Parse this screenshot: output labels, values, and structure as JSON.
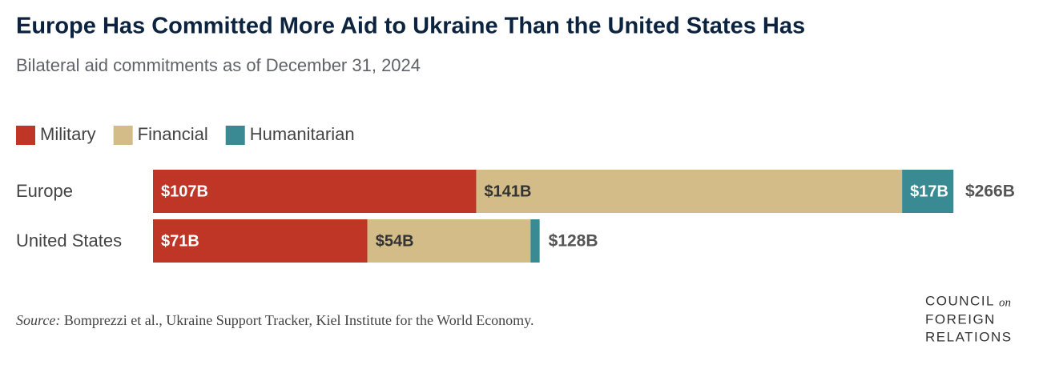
{
  "chart_data": {
    "type": "stacked-bar-horizontal",
    "title": "Europe Has Committed More Aid to Ukraine Than the United States Has",
    "subtitle": "Bilateral aid commitments as of December 31, 2024",
    "categories": [
      "Europe",
      "United States"
    ],
    "series": [
      {
        "name": "Military",
        "color": "#bf3626",
        "values": [
          107,
          71
        ],
        "value_labels": [
          "$107B",
          "$71B"
        ]
      },
      {
        "name": "Financial",
        "color": "#d4bc88",
        "values": [
          141,
          54
        ],
        "value_labels": [
          "$141B",
          "$54B"
        ]
      },
      {
        "name": "Humanitarian",
        "color": "#3a8a94",
        "values": [
          17,
          3
        ],
        "value_labels": [
          "$17B",
          null
        ]
      }
    ],
    "totals": {
      "values": [
        266,
        128
      ],
      "value_labels": [
        "$266B",
        "$128B"
      ]
    },
    "xlim": [
      0,
      266
    ],
    "legend": "top-left"
  },
  "source": {
    "label": "Source:",
    "text": "Bomprezzi et al., Ukraine Support Tracker, Kiel Institute for the World Economy."
  },
  "logo": {
    "line1": "COUNCIL",
    "on": "on",
    "line2": "FOREIGN",
    "line3": "RELATIONS"
  }
}
